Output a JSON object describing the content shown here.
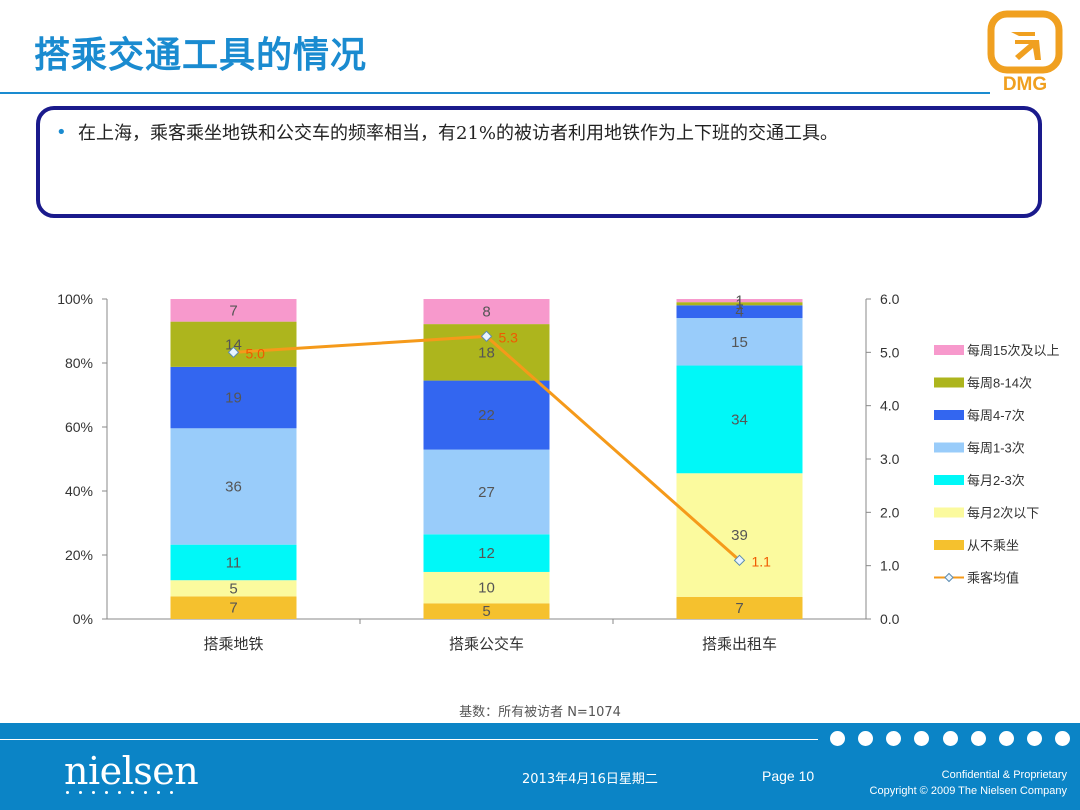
{
  "title": "搭乘交通工具的情况",
  "logo": {
    "text": "DMG",
    "icon": "arrow-square-icon",
    "color": "#f0a020"
  },
  "note": "在上海，乘客乘坐地铁和公交车的频率相当，有21%的被访者利用地铁作为上下班的交通工具。",
  "base_note": "基数：所有被访者 N=1074",
  "footer": {
    "brand": "nielsen",
    "date": "2013年4月16日星期二",
    "page": "Page 10",
    "confidential": "Confidential & Proprietary",
    "copyright": "Copyright © 2009 The Nielsen Company"
  },
  "chart_data": {
    "type": "bar",
    "stacked": true,
    "categories": [
      "搭乘地铁",
      "搭乘公交车",
      "搭乘出租车"
    ],
    "y_ticks": [
      "0%",
      "20%",
      "40%",
      "60%",
      "80%",
      "100%"
    ],
    "y2_ticks": [
      "0.0",
      "1.0",
      "2.0",
      "3.0",
      "4.0",
      "5.0",
      "6.0"
    ],
    "ylim": [
      0,
      100
    ],
    "y2lim": [
      0,
      6
    ],
    "legend_position": "right",
    "series": [
      {
        "name": "从不乘坐",
        "color": "#f5c12e",
        "values": [
          7,
          5,
          7
        ],
        "labels": [
          "7",
          "5",
          "7"
        ]
      },
      {
        "name": "每月2次以下",
        "color": "#fbfa9e",
        "values": [
          5,
          10,
          39
        ],
        "labels": [
          "5",
          "10",
          "39"
        ]
      },
      {
        "name": "每月2-3次",
        "color": "#00f8f8",
        "values": [
          11,
          12,
          34
        ],
        "labels": [
          "11",
          "12",
          "34"
        ]
      },
      {
        "name": "每周1-3次",
        "color": "#99ccfa",
        "values": [
          36,
          27,
          15
        ],
        "labels": [
          "36",
          "27",
          "15"
        ]
      },
      {
        "name": "每周4-7次",
        "color": "#3366f0",
        "values": [
          19,
          22,
          4
        ],
        "labels": [
          "19",
          "22",
          "4"
        ]
      },
      {
        "name": "每周8-14次",
        "color": "#adb51d",
        "values": [
          14,
          18,
          1
        ],
        "labels": [
          "14",
          "18",
          "1"
        ]
      },
      {
        "name": "每周15次及以上",
        "color": "#f799cc",
        "values": [
          7,
          8,
          1
        ],
        "labels": [
          "7",
          "8",
          "1"
        ]
      }
    ],
    "line": {
      "name": "乘客均值",
      "color": "#f59a1a",
      "values": [
        5.0,
        5.3,
        1.1
      ],
      "labels": [
        "5.0",
        "5.3",
        "1.1"
      ],
      "label_color": "#f05a00"
    }
  }
}
